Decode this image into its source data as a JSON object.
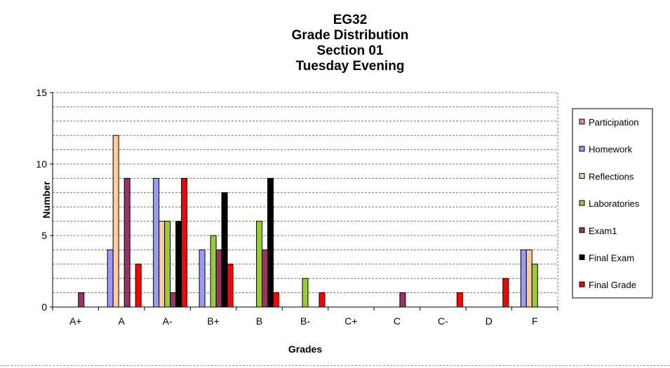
{
  "chart_data": {
    "type": "bar",
    "title": [
      "EG32",
      "Grade Distribution",
      "Section 01",
      "Tuesday Evening"
    ],
    "xlabel": "Grades",
    "ylabel": "Number",
    "ylim": [
      0,
      15
    ],
    "yticks": [
      0,
      5,
      10,
      15
    ],
    "grid": true,
    "legend_position": "right",
    "categories": [
      "A+",
      "A",
      "A-",
      "B+",
      "B",
      "B-",
      "C+",
      "C",
      "C-",
      "D",
      "F"
    ],
    "series": [
      {
        "name": "Participation",
        "color": "#FF8080",
        "values": [
          0,
          0,
          0,
          0,
          0,
          0,
          0,
          0,
          0,
          0,
          0
        ]
      },
      {
        "name": "Homework",
        "color": "#9999FF",
        "values": [
          0,
          4,
          9,
          4,
          0,
          0,
          0,
          0,
          0,
          0,
          4
        ]
      },
      {
        "name": "Reflections",
        "color": "#FFCC99",
        "values": [
          0,
          12,
          6,
          0,
          0,
          0,
          0,
          0,
          0,
          0,
          4
        ]
      },
      {
        "name": "Laboratories",
        "color": "#99CC33",
        "values": [
          0,
          0,
          6,
          5,
          6,
          2,
          0,
          0,
          0,
          0,
          3
        ]
      },
      {
        "name": "Exam1",
        "color": "#993366",
        "values": [
          1,
          9,
          1,
          4,
          4,
          0,
          0,
          1,
          0,
          0,
          0
        ]
      },
      {
        "name": "Final Exam",
        "color": "#000000",
        "values": [
          0,
          0,
          6,
          8,
          9,
          0,
          0,
          0,
          0,
          0,
          0
        ]
      },
      {
        "name": "Final Grade",
        "color": "#FF0000",
        "values": [
          0,
          3,
          9,
          3,
          1,
          1,
          0,
          0,
          1,
          2,
          0
        ]
      }
    ]
  }
}
